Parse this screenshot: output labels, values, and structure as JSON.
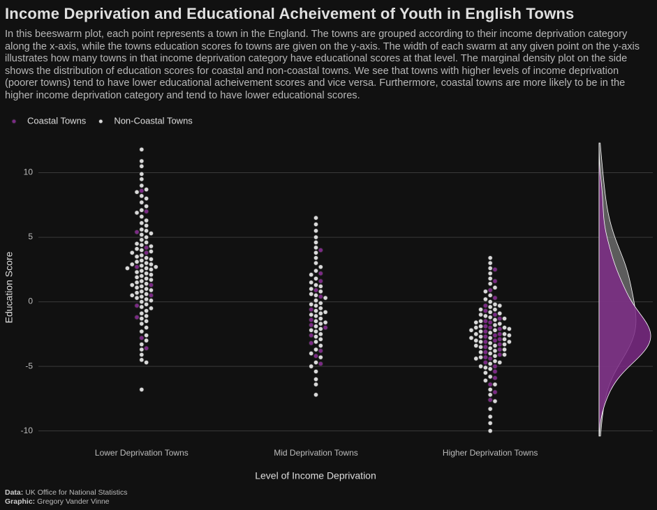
{
  "chart_data": {
    "type": "beeswarm",
    "title": "Income Deprivation and Educational Acheivement of Youth in English Towns",
    "subtitle": "In this beeswarm plot, each point represents a town in the England. The towns are grouped according to their income deprivation category along the x-axis, while the towns education scores fo towns are given on the y-axis. The width of each swarm at any given point on the y-axis illustrates how many towns in that income deprivation category have educational scores at that level. The marginal density plot on the side shows the distribution of education scores for coastal and non-coastal towns. We see that towns with higher levels of income deprivation (poorer towns) tend to have lower educational acheivement scores and vice versa. Furthermore, coastal towns are more likely to be in the higher income deprivation category and tend to have lower educational scores.",
    "x_label": "Level of Income Deprivation",
    "y_label": "Education Score",
    "categories": [
      "Lower Deprivation Towns",
      "Mid Deprivation Towns",
      "Higher Deprivation Towns"
    ],
    "ylim": [
      -10.4,
      12.3
    ],
    "yticks": [
      -10,
      -5,
      0,
      5,
      10
    ],
    "grid": true,
    "legend": "top-left",
    "marginal_density": true,
    "series": [
      {
        "name": "Coastal Towns",
        "color": "#7b2a85",
        "values": [
          [
            8.6,
            7.0,
            5.4,
            4.2,
            3.8,
            2.7,
            1.3,
            0.5,
            -0.3,
            -1.2,
            -2.8,
            -3.6
          ],
          [
            4.0,
            2.2,
            1.6,
            0.4,
            -0.6,
            -1.4,
            -2.0,
            -2.6,
            -3.2,
            -3.8,
            -4.2,
            -4.8,
            0.9,
            -1.8
          ],
          [
            2.5,
            1.6,
            0.9,
            0.3,
            -0.3,
            -0.7,
            -1.0,
            -1.3,
            -1.6,
            -1.9,
            -2.1,
            -2.3,
            -2.5,
            -2.7,
            -2.9,
            -3.1,
            -3.3,
            -3.5,
            -3.7,
            -3.9,
            -4.1,
            -4.4,
            -4.7,
            -5.0,
            -5.4,
            -5.9,
            -6.4,
            -7.0,
            -7.6,
            -1.5,
            -2.6,
            -3.0,
            -2.0,
            -4.3
          ]
        ]
      },
      {
        "name": "Non-Coastal Towns",
        "color": "#d9d9d9",
        "values": [
          [
            11.8,
            10.9,
            10.5,
            9.9,
            9.5,
            9.0,
            8.7,
            8.5,
            8.2,
            8.0,
            7.7,
            7.4,
            7.1,
            6.9,
            6.6,
            6.3,
            6.1,
            5.9,
            5.6,
            5.5,
            5.3,
            5.0,
            4.8,
            4.6,
            4.5,
            4.3,
            4.1,
            4.0,
            3.8,
            3.6,
            3.5,
            3.4,
            3.3,
            3.1,
            3.0,
            2.9,
            2.7,
            2.6,
            2.5,
            2.4,
            2.3,
            2.2,
            2.0,
            1.9,
            1.8,
            1.7,
            1.5,
            1.4,
            1.3,
            1.2,
            1.0,
            0.9,
            0.8,
            0.7,
            0.6,
            0.5,
            0.3,
            0.2,
            0.1,
            0.0,
            -0.2,
            -0.4,
            -0.5,
            -0.7,
            -0.9,
            -1.1,
            -1.3,
            -1.5,
            -1.7,
            -2.0,
            -2.3,
            -2.6,
            -3.0,
            -3.3,
            -3.7,
            -4.1,
            -4.5,
            -4.7,
            -6.8,
            3.2,
            2.8,
            2.1,
            1.6,
            4.4,
            3.9,
            2.6,
            1.1,
            5.2,
            0.4,
            2.9
          ],
          [
            6.5,
            6.0,
            5.5,
            5.0,
            4.6,
            4.2,
            3.8,
            3.4,
            3.0,
            2.7,
            2.4,
            2.1,
            1.8,
            1.5,
            1.3,
            1.0,
            0.8,
            0.5,
            0.3,
            0.1,
            -0.1,
            -0.3,
            -0.5,
            -0.7,
            -0.9,
            -1.1,
            -1.3,
            -1.5,
            -1.7,
            -1.9,
            -2.1,
            -2.3,
            -2.5,
            -2.7,
            -2.9,
            -3.1,
            -3.4,
            -3.7,
            -4.0,
            -4.3,
            -4.7,
            -5.0,
            -5.4,
            -6.0,
            -6.4,
            -7.2,
            -0.2,
            -1.0,
            0.6,
            -1.6,
            -2.2,
            1.2,
            -0.8
          ],
          [
            3.4,
            3.0,
            2.6,
            2.2,
            1.8,
            1.4,
            1.1,
            0.8,
            0.5,
            0.2,
            0.0,
            -0.2,
            -0.4,
            -0.6,
            -0.8,
            -1.0,
            -1.2,
            -1.4,
            -1.5,
            -1.7,
            -1.9,
            -2.0,
            -2.2,
            -2.3,
            -2.5,
            -2.6,
            -2.8,
            -2.9,
            -3.1,
            -3.2,
            -3.4,
            -3.5,
            -3.7,
            -3.8,
            -4.0,
            -4.2,
            -4.4,
            -4.6,
            -4.8,
            -5.0,
            -5.2,
            -5.5,
            -5.8,
            -6.1,
            -6.4,
            -6.8,
            -7.2,
            -7.7,
            -8.3,
            -8.9,
            -9.4,
            -10.0,
            -0.3,
            -1.1,
            -1.6,
            -2.1,
            -2.4,
            -2.7,
            -3.0,
            -3.3,
            -3.6,
            -3.9,
            -4.3,
            -4.7,
            -1.3,
            -2.2,
            -2.8,
            -3.4,
            -0.9,
            -1.8,
            -2.5,
            -3.1,
            -4.1,
            -5.1,
            -0.6,
            -2.0
          ]
        ]
      }
    ],
    "source_label": "Data:",
    "source": "UK Office for National Statistics",
    "credit_label": "Graphic:",
    "credit": "Gregory Vander Vinne"
  }
}
